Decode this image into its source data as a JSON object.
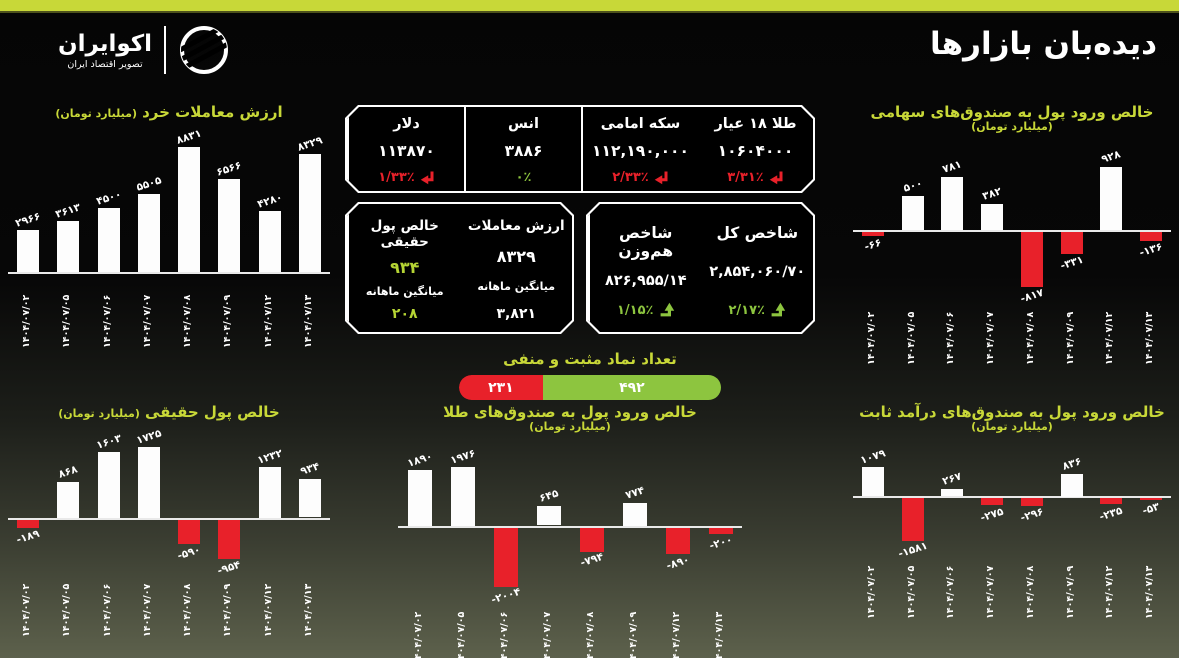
{
  "header": {
    "title": "دیده‌بان بازارها",
    "logo_name": "اکوایران",
    "logo_subtitle": "تصویر اقتصاد ایران"
  },
  "colors": {
    "accent_yellow_green": "#c8d838",
    "negative_red": "#e8212a",
    "positive_green": "#8dc53f",
    "bar_white": "#fdfdfd",
    "background_top": "#050505",
    "background_bottom": "#5d614c"
  },
  "quotes": [
    {
      "name": "طلا ۱۸ عیار",
      "value": "۱۰۶۰۴۰۰۰",
      "change": "۳/۳۱٪",
      "direction": "down"
    },
    {
      "name": "سکه امامی",
      "value": "۱۱۲,۱۹۰,۰۰۰",
      "change": "۲/۳۳٪",
      "direction": "down"
    },
    {
      "name": "انس",
      "value": "۳۸۸۶",
      "change": "۰٪",
      "direction": "flat"
    },
    {
      "name": "دلار",
      "value": "۱۱۳۸۷۰",
      "change": "۱/۳۳٪",
      "direction": "down"
    }
  ],
  "indices": [
    {
      "name": "شاخص کل",
      "value": "۲,۸۵۴,۰۶۰/۷۰",
      "change": "۲/۱۷٪",
      "direction": "up"
    },
    {
      "name": "شاخص هم‌وزن",
      "value": "۸۲۶,۹۵۵/۱۴",
      "change": "۱/۱۵٪",
      "direction": "up"
    }
  ],
  "trade_stats": [
    {
      "name": "ارزش معاملات",
      "value": "۸۳۲۹",
      "sub_label": "میانگین ماهانه",
      "sub_value": "۳,۸۲۱",
      "value_color": "white"
    },
    {
      "name": "خالص پول حقیقی",
      "value": "۹۳۴",
      "sub_label": "میانگین ماهانه",
      "sub_value": "۲۰۸",
      "value_color": "green"
    }
  ],
  "gauge": {
    "title": "تعداد نماد مثبت و منفی",
    "negative_label": "۲۳۱",
    "positive_label": "۴۹۲",
    "negative_value": 231,
    "positive_value": 492
  },
  "chart_data": [
    {
      "id": "retail-trade-value",
      "type": "bar",
      "title": "ارزش معاملات خرد",
      "subtitle": "(میلیارد تومان)",
      "categories": [
        "۱۴۰۴/۰۷/۰۲",
        "۱۴۰۴/۰۷/۰۵",
        "۱۴۰۴/۰۷/۰۶",
        "۱۴۰۴/۰۷/۰۷",
        "۱۴۰۴/۰۷/۰۸",
        "۱۴۰۴/۰۷/۰۹",
        "۱۴۰۴/۰۷/۱۲",
        "۱۴۰۴/۰۷/۱۳"
      ],
      "values": [
        2966,
        3613,
        4500,
        5505,
        8831,
        6566,
        4280,
        8329
      ],
      "labels": [
        "۲۹۶۶",
        "۳۶۱۳",
        "۴۵۰۰",
        "۵۵۰۵",
        "۸۸۳۱",
        "۶۵۶۶",
        "۴۲۸۰",
        "۸۳۲۹"
      ],
      "positive_color": "#fdfdfd",
      "negative_color": "#e8212a"
    },
    {
      "id": "equity-funds-inflow",
      "type": "bar",
      "title": "خالص ورود پول به صندوق‌های سهامی",
      "subtitle": "(میلیارد تومان)",
      "categories": [
        "۱۴۰۴/۰۷/۰۲",
        "۱۴۰۴/۰۷/۰۵",
        "۱۴۰۴/۰۷/۰۶",
        "۱۴۰۴/۰۷/۰۷",
        "۱۴۰۴/۰۷/۰۸",
        "۱۴۰۴/۰۷/۰۹",
        "۱۴۰۴/۰۷/۱۲",
        "۱۴۰۴/۰۷/۱۳"
      ],
      "values": [
        -66,
        500,
        781,
        382,
        -817,
        -331,
        928,
        -136
      ],
      "labels": [
        "-۶۶",
        "۵۰۰",
        "۷۸۱",
        "۳۸۲",
        "-۸۱۷",
        "-۳۳۱",
        "۹۲۸",
        "-۱۳۶"
      ],
      "positive_color": "#fdfdfd",
      "negative_color": "#e8212a"
    },
    {
      "id": "real-money-net",
      "type": "bar",
      "title": "خالص پول حقیقی",
      "subtitle": "(میلیارد تومان)",
      "categories": [
        "۱۴۰۴/۰۷/۰۲",
        "۱۴۰۴/۰۷/۰۵",
        "۱۴۰۴/۰۷/۰۶",
        "۱۴۰۴/۰۷/۰۷",
        "۱۴۰۴/۰۷/۰۸",
        "۱۴۰۴/۰۷/۰۹",
        "۱۴۰۴/۰۷/۱۲",
        "۱۴۰۴/۰۷/۱۳"
      ],
      "values": [
        -189,
        868,
        1603,
        1725,
        -590,
        -954,
        1232,
        934
      ],
      "labels": [
        "-۱۸۹",
        "۸۶۸",
        "۱۶۰۳",
        "۱۷۲۵",
        "-۵۹۰",
        "-۹۵۴",
        "۱۲۳۲",
        "۹۳۴"
      ],
      "positive_color": "#fdfdfd",
      "negative_color": "#e8212a"
    },
    {
      "id": "gold-funds-inflow",
      "type": "bar",
      "title": "خالص ورود پول به صندوق‌های طلا",
      "subtitle": "(میلیارد تومان)",
      "categories": [
        "۱۴۰۴/۰۷/۰۲",
        "۱۴۰۴/۰۷/۰۵",
        "۱۴۰۴/۰۷/۰۶",
        "۱۴۰۴/۰۷/۰۷",
        "۱۴۰۴/۰۷/۰۸",
        "۱۴۰۴/۰۷/۰۹",
        "۱۴۰۴/۰۷/۱۲",
        "۱۴۰۴/۰۷/۱۳"
      ],
      "values": [
        1890,
        1976,
        -2004,
        645,
        -794,
        774,
        -890,
        -200
      ],
      "labels": [
        "۱۸۹۰",
        "۱۹۷۶",
        "-۲۰۰۴",
        "۶۴۵",
        "-۷۹۴",
        "۷۷۴",
        "-۸۹۰",
        "-۲۰۰"
      ],
      "positive_color": "#fdfdfd",
      "negative_color": "#e8212a"
    },
    {
      "id": "fixed-income-funds-inflow",
      "type": "bar",
      "title": "خالص ورود پول به صندوق‌های درآمد ثابت",
      "subtitle": "(میلیارد تومان)",
      "categories": [
        "۱۴۰۴/۰۷/۰۲",
        "۱۴۰۴/۰۷/۰۵",
        "۱۴۰۴/۰۷/۰۶",
        "۱۴۰۴/۰۷/۰۷",
        "۱۴۰۴/۰۷/۰۸",
        "۱۴۰۴/۰۷/۰۹",
        "۱۴۰۴/۰۷/۱۲",
        "۱۴۰۴/۰۷/۱۳"
      ],
      "values": [
        1079,
        -1581,
        267,
        -275,
        -296,
        836,
        -235,
        -53
      ],
      "labels": [
        "۱۰۷۹",
        "-۱۵۸۱",
        "۲۶۷",
        "-۲۷۵",
        "-۲۹۶",
        "۸۳۶",
        "-۲۳۵",
        "-۵۳"
      ],
      "positive_color": "#fdfdfd",
      "negative_color": "#e8212a"
    }
  ]
}
